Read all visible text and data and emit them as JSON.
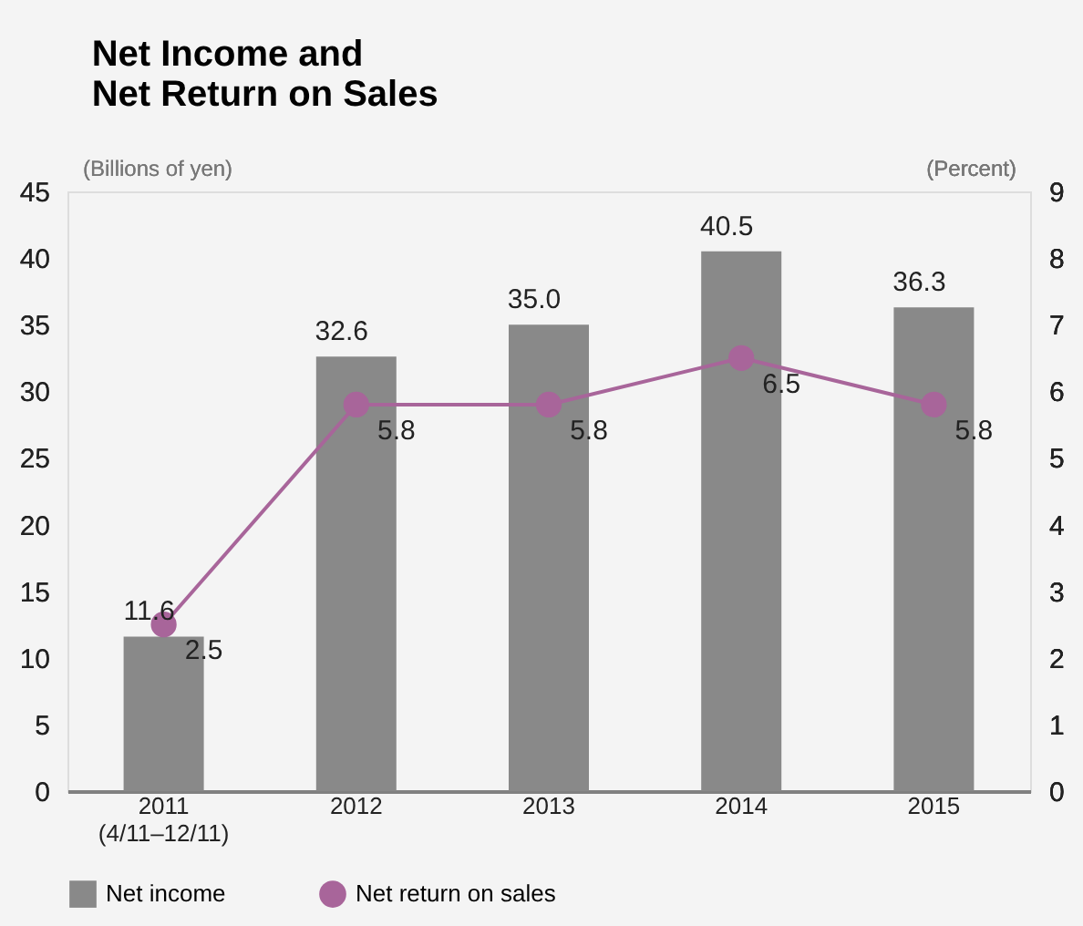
{
  "chart_data": {
    "type": "bar",
    "title": [
      "Net Income and",
      "Net Return on Sales"
    ],
    "ylabel": "(Billions of yen)",
    "y2label": "(Percent)",
    "categories": [
      "2011\n(4/11–12/11)",
      "2012",
      "2013",
      "2014",
      "2015"
    ],
    "series": [
      {
        "name": "Net income",
        "color": "#898989",
        "values": [
          11.6,
          32.6,
          35.0,
          40.5,
          36.3
        ],
        "value_labels": [
          "11.6",
          "32.6",
          "35.0",
          "40.5",
          "36.3"
        ]
      },
      {
        "name": "Net return on sales",
        "type": "line",
        "axis": "y2",
        "color": "#a8659a",
        "marker": "circle",
        "values": [
          2.5,
          5.8,
          5.8,
          6.5,
          5.8
        ],
        "value_labels": [
          "2.5",
          "5.8",
          "5.8",
          "6.5",
          "5.8"
        ]
      }
    ],
    "ylim": [
      0,
      45
    ],
    "yticks": [
      0,
      5,
      10,
      15,
      20,
      25,
      30,
      35,
      40,
      45
    ],
    "y2lim": [
      0,
      9
    ],
    "y2ticks": [
      0,
      1,
      2,
      3,
      4,
      5,
      6,
      7,
      8,
      9
    ],
    "grid": false,
    "legend": "bottom"
  }
}
